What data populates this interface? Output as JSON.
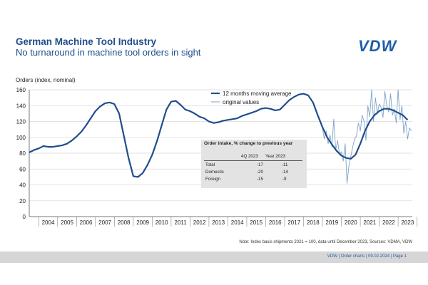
{
  "header": {
    "title": "German Machine Tool Industry",
    "subtitle": "No turnaround in machine tool orders in sight",
    "logo_text": "VDW"
  },
  "inset_table": {
    "title": "Order intake, % change to previous year",
    "columns": [
      "4Q 2023",
      "Year 2023"
    ],
    "rows": [
      {
        "label": "Total",
        "q4": "-17",
        "year": "-11"
      },
      {
        "label": "Domestic",
        "q4": "-20",
        "year": "-14"
      },
      {
        "label": "Foreign",
        "q4": "-15",
        "year": "-9"
      }
    ]
  },
  "note": "Note: Index basis shipments 2021 = 100, data until December 2023, Sources: VDMA, VDW",
  "footer": "VDW  |  Order charts  |  09.02.2024  |  Page 1",
  "colors": {
    "title": "#1f4e8c",
    "series_ma": "#1f4e8c",
    "series_orig": "#7fa3c8",
    "footer_bar": "#d6d6d6"
  },
  "chart_data": {
    "type": "line",
    "ylabel": "Orders (index, nominal)",
    "ylim": [
      0,
      160
    ],
    "yticks": [
      0,
      20,
      40,
      60,
      80,
      100,
      120,
      140,
      160
    ],
    "xlim": [
      2003.5,
      2023.75
    ],
    "xtick_labels": [
      "2004",
      "2005",
      "2006",
      "2007",
      "2008",
      "2009",
      "2010",
      "2011",
      "2012",
      "2013",
      "2014",
      "2015",
      "2016",
      "2017",
      "2018",
      "2019",
      "2020",
      "2021",
      "2022",
      "2023"
    ],
    "legend_position": "top-center",
    "series": [
      {
        "name": "12 months moving average",
        "x": [
          2003.5,
          2003.75,
          2004.0,
          2004.25,
          2004.5,
          2004.75,
          2005.0,
          2005.25,
          2005.5,
          2005.75,
          2006.0,
          2006.25,
          2006.5,
          2006.75,
          2007.0,
          2007.25,
          2007.5,
          2007.75,
          2008.0,
          2008.25,
          2008.5,
          2008.75,
          2009.0,
          2009.25,
          2009.5,
          2009.75,
          2010.0,
          2010.25,
          2010.5,
          2010.75,
          2011.0,
          2011.25,
          2011.5,
          2011.75,
          2012.0,
          2012.25,
          2012.5,
          2012.75,
          2013.0,
          2013.25,
          2013.5,
          2013.75,
          2014.0,
          2014.25,
          2014.5,
          2014.75,
          2015.0,
          2015.25,
          2015.5,
          2015.75,
          2016.0,
          2016.25,
          2016.5,
          2016.75,
          2017.0,
          2017.25,
          2017.5,
          2017.75,
          2018.0,
          2018.25,
          2018.5,
          2018.75,
          2019.0,
          2019.25,
          2019.5,
          2019.75,
          2020.0,
          2020.25,
          2020.5,
          2020.75,
          2021.0,
          2021.25,
          2021.5,
          2021.75,
          2022.0,
          2022.25,
          2022.5,
          2022.75,
          2023.0,
          2023.25,
          2023.5
        ],
        "values": [
          81,
          84,
          86,
          89,
          88,
          88,
          89,
          90,
          92,
          96,
          101,
          107,
          115,
          124,
          133,
          139,
          143,
          144,
          142,
          130,
          102,
          74,
          51,
          50,
          55,
          65,
          78,
          95,
          115,
          135,
          145,
          146,
          141,
          135,
          133,
          130,
          126,
          124,
          120,
          118,
          119,
          121,
          122,
          123,
          124,
          127,
          129,
          131,
          133,
          136,
          137,
          136,
          134,
          135,
          141,
          147,
          151,
          154,
          155,
          153,
          144,
          128,
          113,
          100,
          91,
          83,
          77,
          74,
          73,
          78,
          92,
          108,
          120,
          128,
          133,
          136,
          136,
          134,
          131,
          128,
          122
        ]
      },
      {
        "name": "original values",
        "x": [
          2019.0,
          2019.1,
          2019.2,
          2019.3,
          2019.4,
          2019.5,
          2019.6,
          2019.7,
          2019.8,
          2019.9,
          2020.0,
          2020.1,
          2020.2,
          2020.3,
          2020.4,
          2020.5,
          2020.6,
          2020.7,
          2020.8,
          2020.9,
          2021.0,
          2021.1,
          2021.2,
          2021.3,
          2021.4,
          2021.5,
          2021.6,
          2021.7,
          2021.8,
          2021.9,
          2022.0,
          2022.1,
          2022.2,
          2022.3,
          2022.4,
          2022.5,
          2022.6,
          2022.7,
          2022.8,
          2022.9,
          2023.0,
          2023.1,
          2023.2,
          2023.3,
          2023.4,
          2023.5,
          2023.6,
          2023.7
        ],
        "values": [
          112,
          98,
          108,
          92,
          103,
          88,
          123,
          84,
          96,
          78,
          82,
          70,
          92,
          42,
          65,
          76,
          88,
          98,
          102,
          118,
          108,
          128,
          120,
          96,
          140,
          126,
          160,
          120,
          150,
          130,
          142,
          138,
          125,
          158,
          140,
          132,
          155,
          128,
          136,
          118,
          160,
          122,
          140,
          105,
          120,
          98,
          112,
          108
        ]
      }
    ]
  }
}
